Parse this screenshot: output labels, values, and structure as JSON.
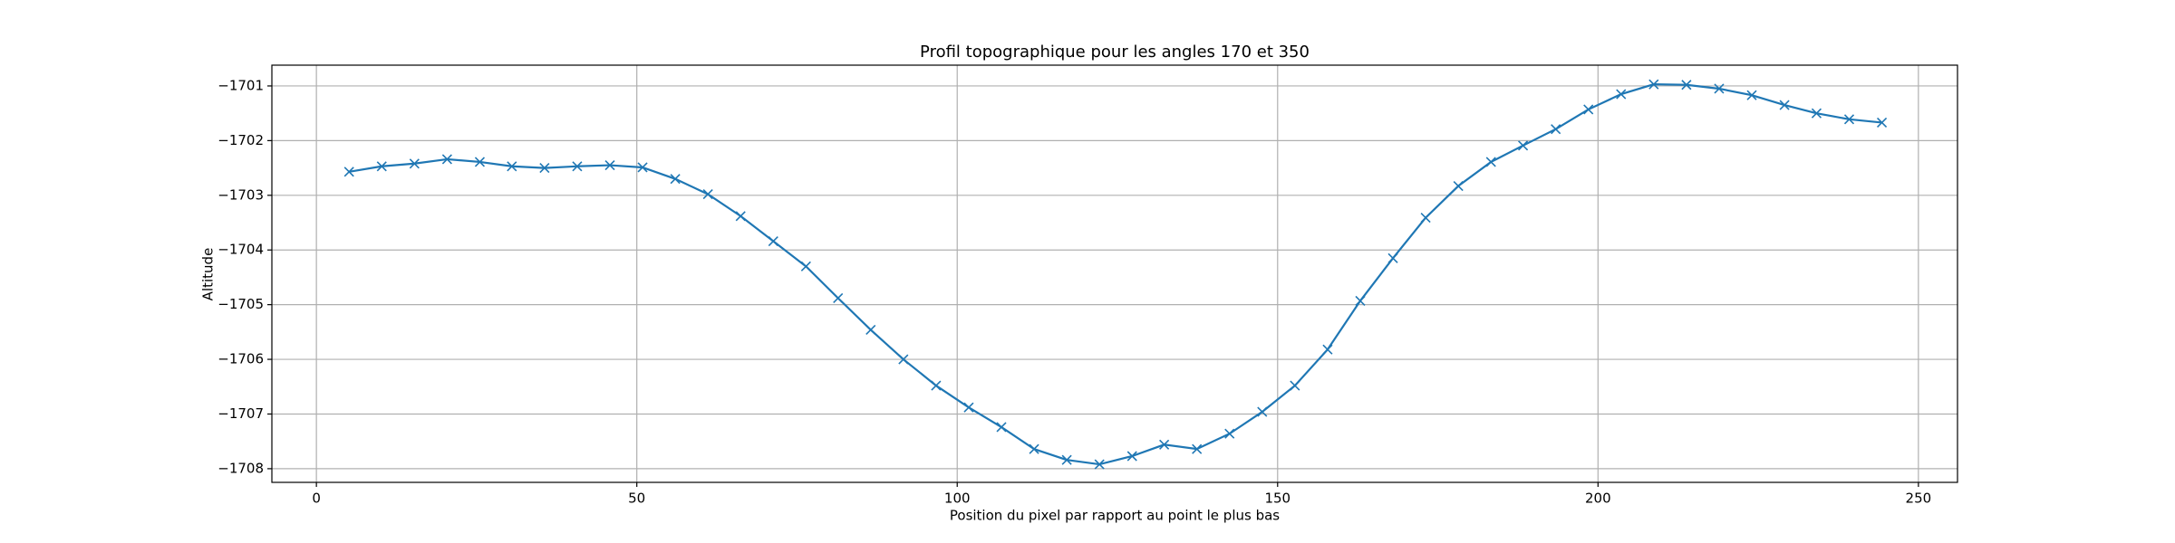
{
  "chart_data": {
    "type": "line",
    "title": "Profil topographique pour les angles 170 et 350",
    "x_label": "Position du pixel par rapport au point le plus bas",
    "y_label": "Altitude",
    "x": [
      5.1,
      10.2,
      15.3,
      20.4,
      25.5,
      30.5,
      35.6,
      40.7,
      45.8,
      50.9,
      56.0,
      61.1,
      66.2,
      71.3,
      76.4,
      81.4,
      86.5,
      91.6,
      96.7,
      101.8,
      106.9,
      112.0,
      117.1,
      122.2,
      127.3,
      132.3,
      137.4,
      142.5,
      147.6,
      152.7,
      157.8,
      162.9,
      168.0,
      173.1,
      178.2,
      183.3,
      188.3,
      193.4,
      198.5,
      203.6,
      208.7,
      213.8,
      218.9,
      224.0,
      229.1,
      234.1,
      239.2,
      244.3
    ],
    "series": [
      {
        "color": "#1f77b4",
        "marker": "x",
        "values": [
          -1702.57,
          -1702.47,
          -1702.42,
          -1702.34,
          -1702.39,
          -1702.47,
          -1702.5,
          -1702.47,
          -1702.45,
          -1702.49,
          -1702.7,
          -1702.98,
          -1703.38,
          -1703.84,
          -1704.3,
          -1704.88,
          -1705.46,
          -1706.0,
          -1706.48,
          -1706.88,
          -1707.24,
          -1707.64,
          -1707.84,
          -1707.92,
          -1707.77,
          -1707.56,
          -1707.64,
          -1707.36,
          -1706.96,
          -1706.48,
          -1705.82,
          -1704.93,
          -1704.15,
          -1703.41,
          -1702.83,
          -1702.39,
          -1702.09,
          -1701.79,
          -1701.43,
          -1701.15,
          -1700.97,
          -1700.98,
          -1701.05,
          -1701.17,
          -1701.35,
          -1701.5,
          -1701.61,
          -1701.67
        ]
      }
    ],
    "xlim": [
      -6.95,
      256.1
    ],
    "ylim": [
      -1708.25,
      -1700.62
    ],
    "xticks": [
      0,
      50,
      100,
      150,
      200,
      250
    ],
    "yticks": [
      {
        "value": -1708,
        "label": "−1708"
      },
      {
        "value": -1707,
        "label": "−1707"
      },
      {
        "value": -1706,
        "label": "−1706"
      },
      {
        "value": -1705,
        "label": "−1705"
      },
      {
        "value": -1704,
        "label": "−1704"
      },
      {
        "value": -1703,
        "label": "−1703"
      },
      {
        "value": -1702,
        "label": "−1702"
      },
      {
        "value": -1701,
        "label": "−1701"
      }
    ],
    "grid": true
  }
}
